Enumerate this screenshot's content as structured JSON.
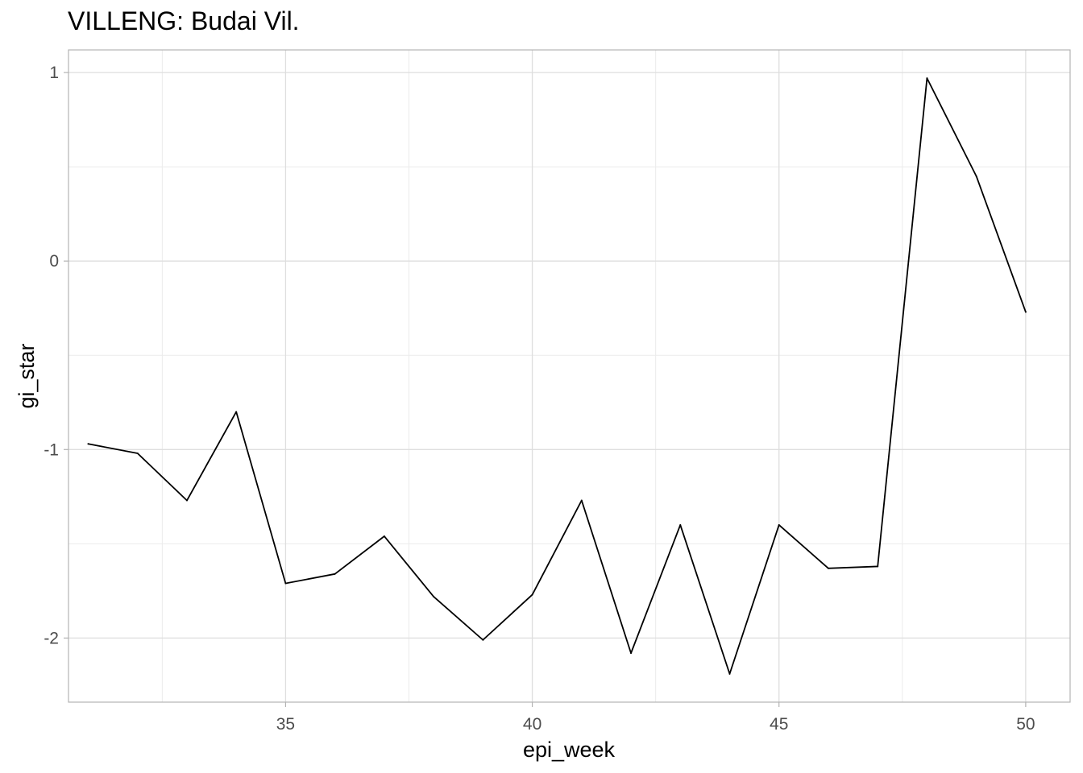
{
  "chart_data": {
    "type": "line",
    "title": "VILLENG: Budai Vil.",
    "xlabel": "epi_week",
    "ylabel": "gi_star",
    "xlim": [
      30.6,
      50.9
    ],
    "ylim": [
      -2.34,
      1.12
    ],
    "x_ticks": [
      35,
      40,
      45,
      50
    ],
    "x_tick_labels": [
      "35",
      "40",
      "45",
      "50"
    ],
    "x_minor_ticks": [
      32.5,
      37.5,
      42.5,
      47.5
    ],
    "y_ticks": [
      -2,
      -1,
      0,
      1
    ],
    "y_tick_labels": [
      "-2",
      "-1",
      "0",
      "1"
    ],
    "y_minor_ticks": [
      -1.5,
      -0.5,
      0.5
    ],
    "grid": true,
    "series": [
      {
        "name": "gi_star",
        "color": "#000000",
        "x": [
          31,
          32,
          33,
          34,
          35,
          36,
          37,
          38,
          39,
          40,
          41,
          42,
          43,
          44,
          45,
          46,
          47,
          48,
          49,
          50
        ],
        "values": [
          -0.97,
          -1.02,
          -1.27,
          -0.8,
          -1.71,
          -1.66,
          -1.46,
          -1.78,
          -2.01,
          -1.77,
          -1.27,
          -2.08,
          -1.4,
          -2.19,
          -1.4,
          -1.63,
          -1.62,
          0.97,
          0.45,
          -0.27
        ]
      }
    ]
  }
}
